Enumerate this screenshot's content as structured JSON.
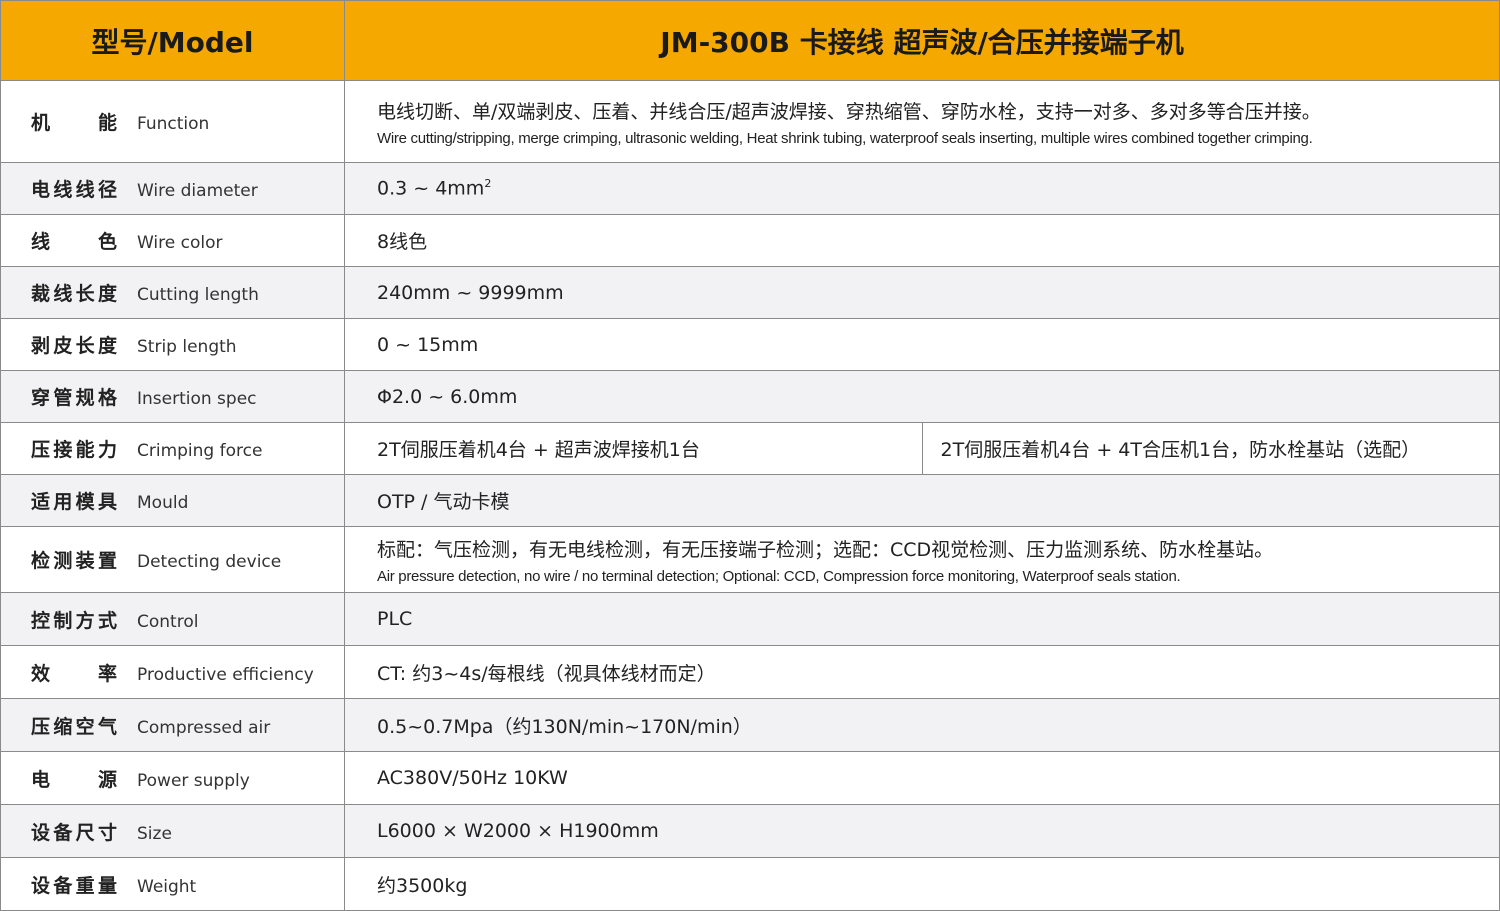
{
  "header": {
    "model_label": "型号/Model",
    "model_value": "JM-300B 卡接线 超声波/合压并接端子机"
  },
  "colors": {
    "header_bg": "#f5a800",
    "alt_row_bg": "#f2f2f4",
    "border": "#8a8a8a"
  },
  "rows": [
    {
      "zh": "机能",
      "en": "Function",
      "value": "电线切断、单/双端剥皮、压着、并线合压/超声波焊接、穿热缩管、穿防水栓，支持一对多、多对多等合压并接。",
      "value_en": "Wire cutting/stripping, merge crimping, ultrasonic welding, Heat shrink tubing, waterproof seals inserting, multiple wires combined together crimping."
    },
    {
      "zh": "电线线径",
      "en": "Wire diameter",
      "value": "0.3 ~ 4mm",
      "sup": "2"
    },
    {
      "zh": "线色",
      "en": "Wire color",
      "value": "8线色"
    },
    {
      "zh": "裁线长度",
      "en": "Cutting length",
      "value": "240mm ~ 9999mm"
    },
    {
      "zh": "剥皮长度",
      "en": "Strip length",
      "value": "0 ~ 15mm"
    },
    {
      "zh": "穿管规格",
      "en": "Insertion spec",
      "value": "Φ2.0 ~ 6.0mm"
    },
    {
      "zh": "压接能力",
      "en": "Crimping force",
      "value": "2T伺服压着机4台 + 超声波焊接机1台",
      "value2": "2T伺服压着机4台 + 4T合压机1台，防水栓基站（选配）"
    },
    {
      "zh": "适用模具",
      "en": "Mould",
      "value": "OTP / 气动卡模"
    },
    {
      "zh": "检测装置",
      "en": "Detecting device",
      "value": "标配：气压检测，有无电线检测，有无压接端子检测；选配：CCD视觉检测、压力监测系统、防水栓基站。",
      "value_en": "Air pressure detection, no wire / no terminal detection; Optional: CCD, Compression force monitoring, Waterproof seals station."
    },
    {
      "zh": "控制方式",
      "en": "Control",
      "value": "PLC"
    },
    {
      "zh": "效率",
      "en": "Productive efficiency",
      "value": "CT: 约3~4s/每根线（视具体线材而定）"
    },
    {
      "zh": "压缩空气",
      "en": "Compressed air",
      "value": "0.5~0.7Mpa（约130N/min~170N/min）"
    },
    {
      "zh": "电源",
      "en": "Power supply",
      "value": "AC380V/50Hz 10KW"
    },
    {
      "zh": "设备尺寸",
      "en": "Size",
      "value": "L6000 × W2000 × H1900mm"
    },
    {
      "zh": "设备重量",
      "en": "Weight",
      "value": "约3500kg"
    }
  ]
}
